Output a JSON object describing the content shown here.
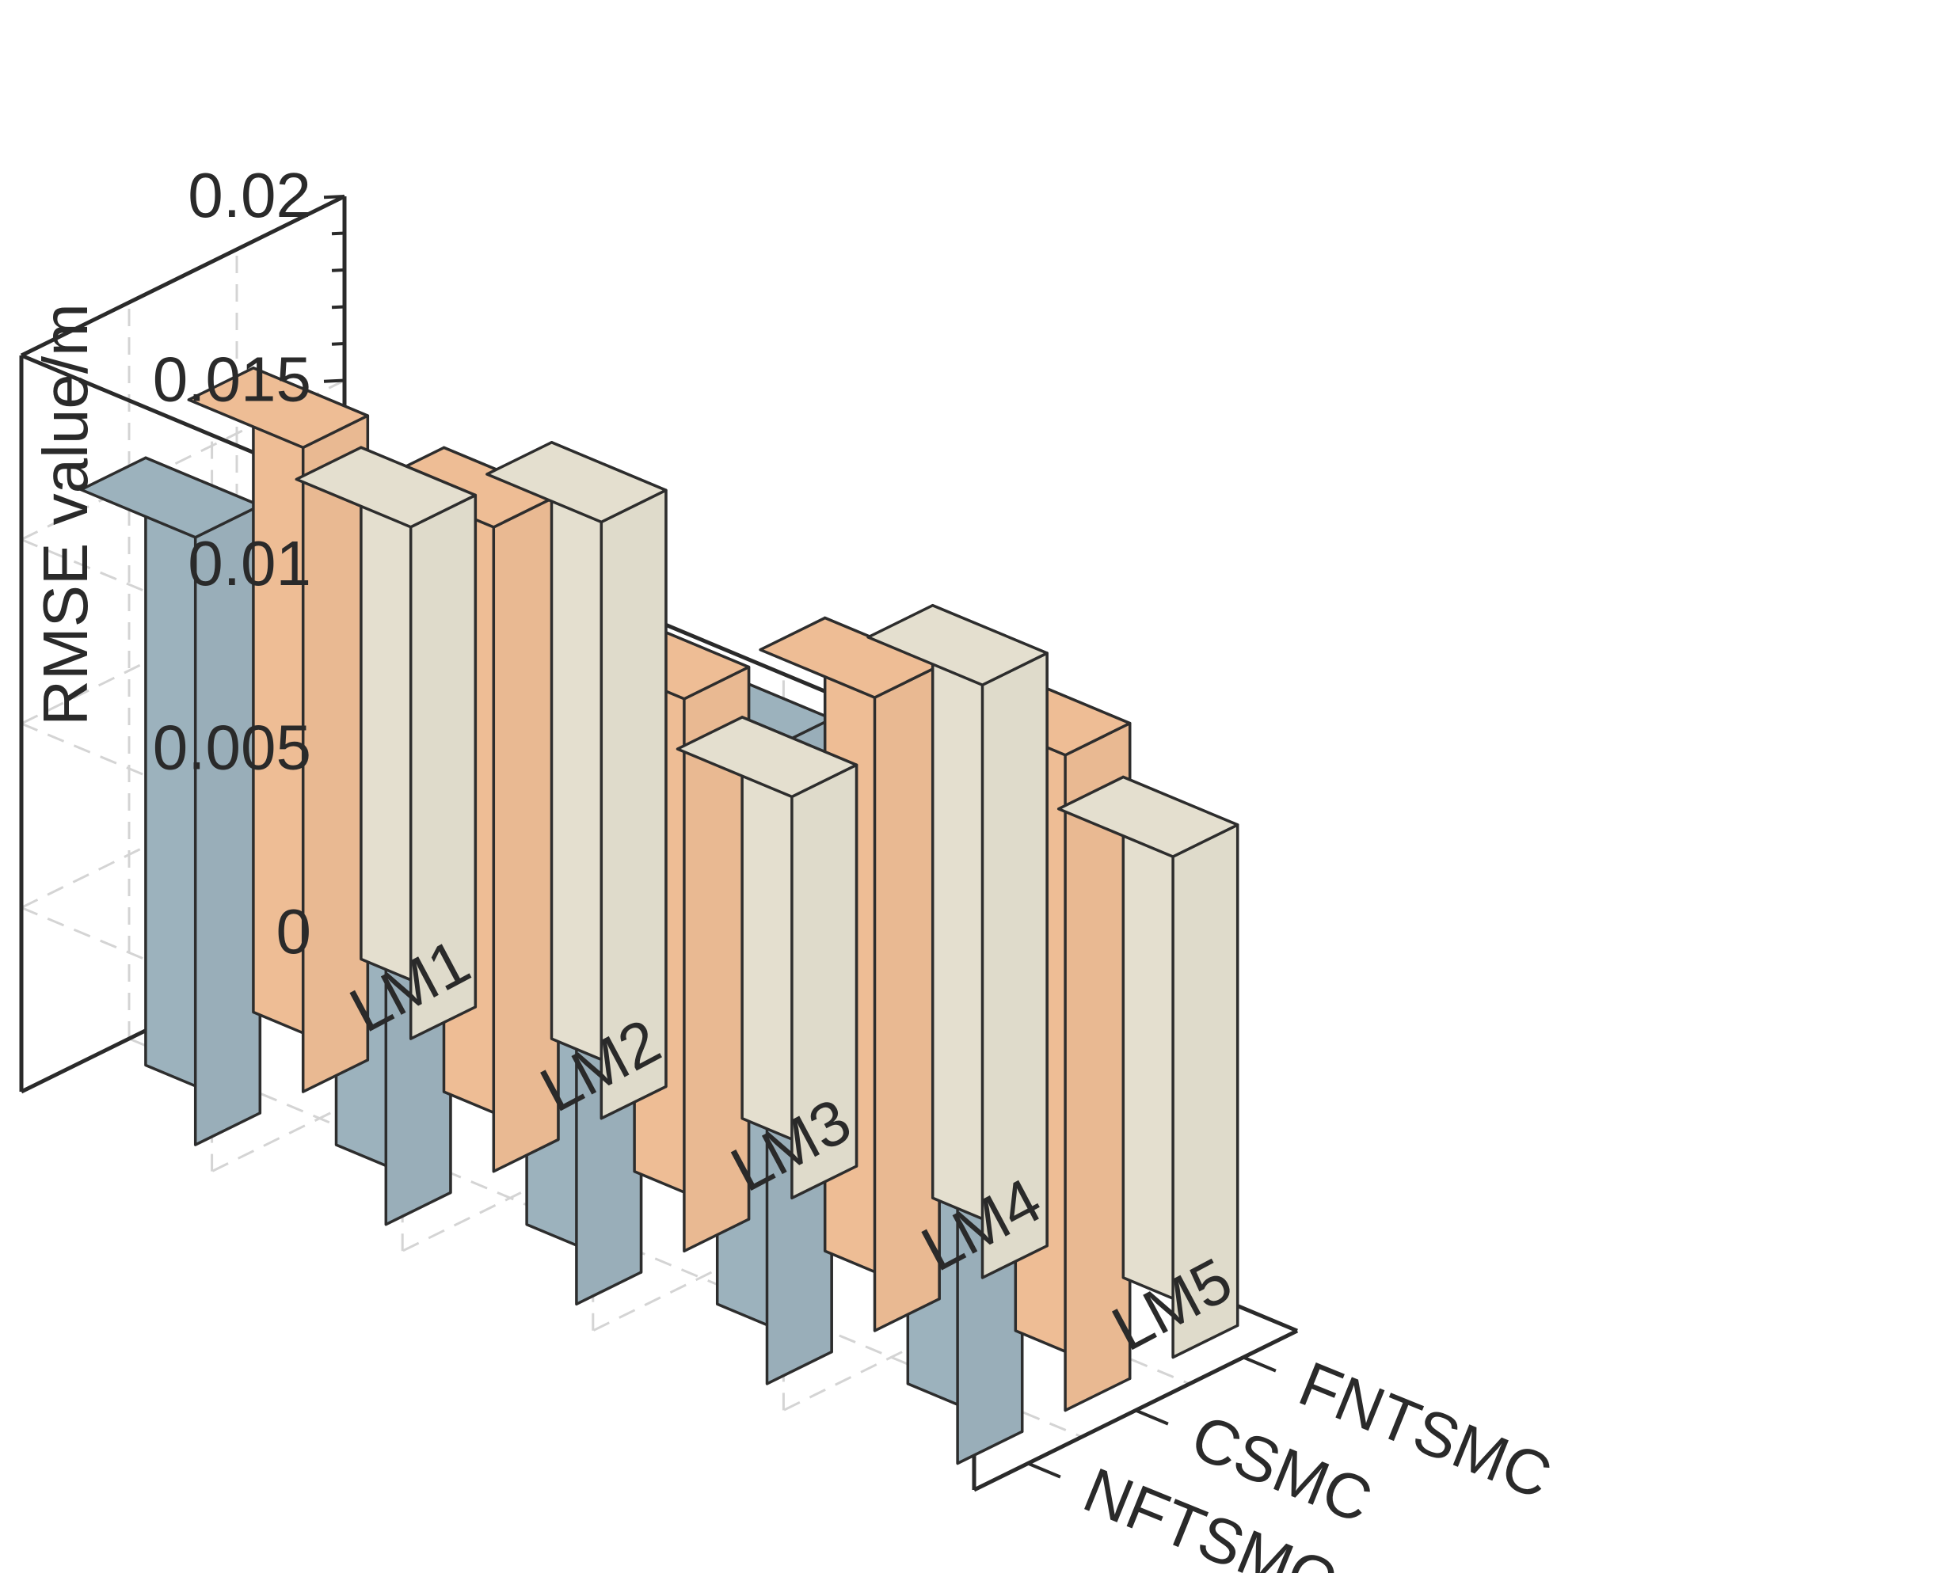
{
  "chart_data": {
    "type": "bar",
    "subtype": "3d-grouped-bar",
    "title": "",
    "xlabel": "",
    "ylabel": "",
    "zlabel": "RMSE value/m",
    "categories": [
      "LM1",
      "LM2",
      "LM3",
      "LM4",
      "LM5"
    ],
    "series": [
      {
        "name": "FNTSMC",
        "color": "#e4dfcf",
        "values": [
          0.0139,
          0.0162,
          0.0109,
          0.0161,
          0.0136
        ]
      },
      {
        "name": "CSMC",
        "color": "#eebd95",
        "values": [
          0.0175,
          0.0175,
          0.015,
          0.0172,
          0.0178
        ]
      },
      {
        "name": "NFTSMC",
        "color": "#9cb2bd",
        "values": [
          0.0165,
          0.0158,
          0.0139,
          0.0172,
          0.0161
        ]
      }
    ],
    "zlim": [
      0,
      0.02
    ],
    "zticks": [
      "0",
      "0.005",
      "0.01",
      "0.015",
      "0.02"
    ],
    "grid": true
  }
}
